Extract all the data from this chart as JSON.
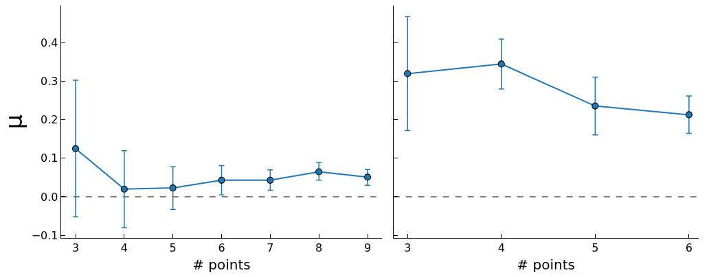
{
  "chart_data": [
    {
      "type": "line",
      "xlabel": "# points",
      "ylabel": "μ",
      "x": [
        3,
        4,
        5,
        6,
        7,
        8,
        9
      ],
      "series": [
        {
          "color": "#1f77b4",
          "values": [
            0.125,
            0.02,
            0.023,
            0.043,
            0.043,
            0.065,
            0.051
          ],
          "errors": [
            [
              -0.052,
              0.303
            ],
            [
              -0.08,
              0.12
            ],
            [
              -0.033,
              0.078
            ],
            [
              0.005,
              0.081
            ],
            [
              0.017,
              0.07
            ],
            [
              0.043,
              0.089
            ],
            [
              0.03,
              0.071
            ]
          ]
        }
      ],
      "xlim": [
        2.7,
        9.3
      ],
      "xticks": [
        3,
        4,
        5,
        6,
        7,
        8,
        9
      ],
      "ylim": [
        -0.107,
        0.497
      ],
      "yticks": [
        {
          "value": -0.1,
          "label": "−0.1"
        },
        {
          "value": 0,
          "label": "0.0"
        },
        {
          "value": 0.1,
          "label": "0.1"
        },
        {
          "value": 0.2,
          "label": "0.2"
        },
        {
          "value": 0.3,
          "label": "0.3"
        },
        {
          "value": 0.4,
          "label": "0.4"
        }
      ],
      "ref_lines": [
        {
          "axis": "y",
          "value": 0,
          "color": "#000000",
          "line_style": "dashed"
        }
      ],
      "marker": "circle",
      "grid": false
    },
    {
      "type": "line",
      "xlabel": "# points",
      "x": [
        3,
        4,
        5,
        6
      ],
      "series": [
        {
          "color": "#1f77b4",
          "values": [
            0.32,
            0.345,
            0.236,
            0.213
          ],
          "errors": [
            [
              0.172,
              0.468
            ],
            [
              0.28,
              0.41
            ],
            [
              0.161,
              0.311
            ],
            [
              0.165,
              0.262
            ]
          ]
        }
      ],
      "xlim": [
        2.85,
        6.1
      ],
      "xticks": [
        3,
        4,
        5,
        6
      ],
      "ylim": [
        -0.107,
        0.497
      ],
      "yticks": [
        {
          "value": -0.1,
          "label": null
        },
        {
          "value": 0,
          "label": null
        },
        {
          "value": 0.1,
          "label": null
        },
        {
          "value": 0.2,
          "label": null
        },
        {
          "value": 0.3,
          "label": null
        },
        {
          "value": 0.4,
          "label": null
        }
      ],
      "ref_lines": [
        {
          "axis": "y",
          "value": 0,
          "color": "#000000",
          "line_style": "dashed"
        }
      ],
      "marker": "circle",
      "grid": false,
      "tick_labels": "x"
    }
  ]
}
